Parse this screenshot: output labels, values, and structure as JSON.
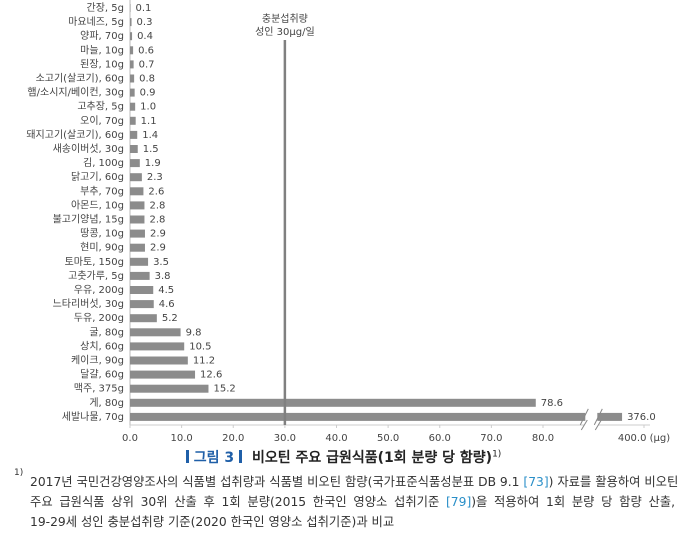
{
  "chart_data": {
    "type": "barh",
    "categories": [
      "간장, 5g",
      "마요네즈, 5g",
      "양파, 70g",
      "마늘, 10g",
      "된장, 10g",
      "소고기(살코기), 60g",
      "햄/소시지/베이컨, 30g",
      "고추장, 5g",
      "오이, 70g",
      "돼지고기(살코기), 60g",
      "새송이버섯, 30g",
      "김, 100g",
      "닭고기, 60g",
      "부추, 70g",
      "아몬드, 10g",
      "불고기양념, 15g",
      "땅콩, 10g",
      "현미, 90g",
      "토마토, 150g",
      "고춧가루, 5g",
      "우유, 200g",
      "느타리버섯, 30g",
      "두유, 200g",
      "굴, 80g",
      "상치, 60g",
      "케이크, 90g",
      "달걀, 60g",
      "맥주, 375g",
      "게, 80g",
      "세발나물, 70g"
    ],
    "values": [
      0.1,
      0.3,
      0.4,
      0.6,
      0.7,
      0.8,
      0.9,
      1.0,
      1.1,
      1.4,
      1.5,
      1.9,
      2.3,
      2.6,
      2.8,
      2.8,
      2.9,
      2.9,
      3.5,
      3.8,
      4.5,
      4.6,
      5.2,
      9.8,
      10.5,
      11.2,
      12.6,
      15.2,
      78.6,
      376.0
    ],
    "value_labels": [
      "0.1",
      "0.3",
      "0.4",
      "0.6",
      "0.7",
      "0.8",
      "0.9",
      "1.0",
      "1.1",
      "1.4",
      "1.5",
      "1.9",
      "2.3",
      "2.6",
      "2.8",
      "2.8",
      "2.9",
      "2.9",
      "3.5",
      "3.8",
      "4.5",
      "4.6",
      "5.2",
      "9.8",
      "10.5",
      "11.2",
      "12.6",
      "15.2",
      "78.6",
      "376.0"
    ],
    "color": "#8c8c8c",
    "xlim": [
      0,
      400
    ],
    "xbreak": [
      88,
      350
    ],
    "xticks": [
      {
        "value": 0,
        "label": "0.0"
      },
      {
        "value": 10,
        "label": "10.0"
      },
      {
        "value": 20,
        "label": "20.0"
      },
      {
        "value": 30,
        "label": "30.0"
      },
      {
        "value": 40,
        "label": "40.0"
      },
      {
        "value": 50,
        "label": "50.0"
      },
      {
        "value": 60,
        "label": "60.0"
      },
      {
        "value": 70,
        "label": "70.0"
      },
      {
        "value": 80,
        "label": "80.0"
      },
      {
        "value": 400,
        "label": "400.0 (μg)"
      }
    ],
    "reference": {
      "value": 30,
      "label": [
        "충분섭취량",
        "성인 30μg/일"
      ],
      "color": "#808080"
    },
    "figure_label": "그림 3",
    "title": "비오틴 주요 급원식품(1회 분량 당 함량)",
    "title_note": "1)"
  },
  "footnote": {
    "marker": "1)",
    "lines": [
      [
        {
          "text": "2017년 국민건강영양조사의 식품별 섭취량과 식품별 비오틴 함량(국가표준식품성분표 DB 9.1 "
        },
        {
          "text": "[73]",
          "link": true
        },
        {
          "text": ") 자료를 활용하여 비오틴"
        }
      ],
      [
        {
          "text": "주요 급원식품 상위 30위 산출 후 1회 분량(2015 한국인 영양소 섭취기준 "
        },
        {
          "text": "[79]",
          "link": true
        },
        {
          "text": ")을 적용하여 1회 분량 당 함량 산출,"
        }
      ],
      [
        {
          "text": "19-29세 성인 충분섭취량 기준(2020 한국인 영양소 섭취기준)과 비교"
        }
      ]
    ]
  }
}
